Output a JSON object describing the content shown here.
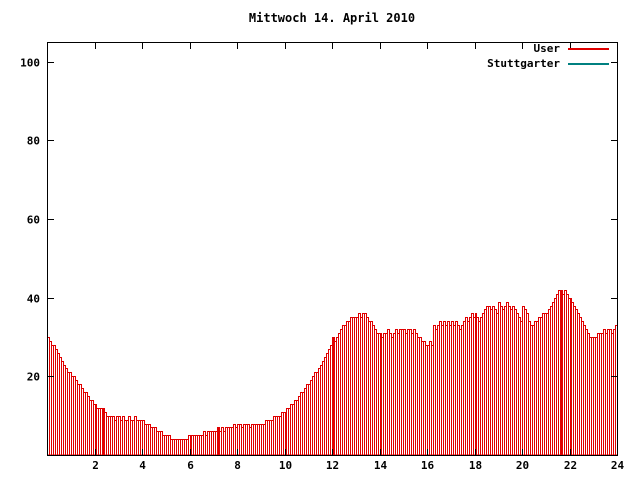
{
  "chart_data": {
    "type": "bar",
    "title": "Mittwoch 14. April 2010",
    "xlabel": "",
    "ylabel": "",
    "xlim": [
      0,
      24
    ],
    "ylim": [
      0,
      105
    ],
    "x_ticks": [
      2,
      4,
      6,
      8,
      10,
      12,
      14,
      16,
      18,
      20,
      22,
      24
    ],
    "y_ticks": [
      20,
      40,
      60,
      80,
      100
    ],
    "grid": false,
    "axis_color": "#000000",
    "background_color": "#ffffff",
    "bar_interval_minutes": 5,
    "legend": [
      {
        "label": "User",
        "color": "#e00000"
      },
      {
        "label": "Stuttgarter",
        "color": "#008080"
      }
    ],
    "series": [
      {
        "name": "User",
        "color": "#e00000",
        "solid_indices": [
          28,
          86,
          144,
          259
        ],
        "values": [
          30,
          29,
          28,
          28,
          27,
          26,
          25,
          24,
          23,
          22,
          21,
          21,
          20,
          20,
          19,
          18,
          18,
          17,
          16,
          16,
          15,
          14,
          14,
          13,
          13,
          12,
          12,
          12,
          12,
          11,
          10,
          10,
          10,
          10,
          9,
          10,
          10,
          9,
          10,
          9,
          9,
          10,
          9,
          9,
          10,
          9,
          9,
          9,
          9,
          8,
          8,
          8,
          7,
          7,
          7,
          6,
          6,
          6,
          5,
          5,
          5,
          5,
          4,
          4,
          4,
          4,
          4,
          4,
          4,
          4,
          4,
          5,
          4,
          5,
          5,
          5,
          5,
          5,
          5,
          6,
          5,
          6,
          6,
          6,
          6,
          6,
          7,
          6,
          7,
          6,
          7,
          7,
          7,
          7,
          8,
          7,
          8,
          8,
          7,
          8,
          8,
          8,
          7,
          8,
          8,
          8,
          8,
          8,
          8,
          8,
          9,
          9,
          9,
          9,
          10,
          10,
          10,
          10,
          11,
          11,
          11,
          12,
          12,
          13,
          13,
          14,
          14,
          15,
          16,
          16,
          17,
          18,
          18,
          19,
          20,
          21,
          21,
          22,
          23,
          24,
          25,
          26,
          27,
          28,
          30,
          29,
          30,
          31,
          32,
          33,
          33,
          34,
          34,
          35,
          35,
          35,
          35,
          36,
          35,
          36,
          36,
          35,
          34,
          34,
          33,
          32,
          31,
          31,
          31,
          30,
          31,
          31,
          32,
          31,
          30,
          31,
          32,
          31,
          32,
          32,
          32,
          31,
          32,
          32,
          31,
          32,
          31,
          30,
          30,
          29,
          29,
          28,
          28,
          29,
          28,
          33,
          32,
          33,
          34,
          33,
          34,
          33,
          34,
          33,
          34,
          33,
          34,
          33,
          32,
          33,
          34,
          35,
          34,
          35,
          36,
          35,
          36,
          35,
          34,
          35,
          36,
          37,
          38,
          38,
          37,
          38,
          37,
          36,
          39,
          38,
          37,
          38,
          39,
          38,
          37,
          38,
          37,
          36,
          35,
          34,
          38,
          37,
          36,
          34,
          33,
          33,
          34,
          34,
          35,
          35,
          36,
          36,
          36,
          37,
          38,
          39,
          40,
          41,
          42,
          42,
          41,
          42,
          41,
          40,
          40,
          39,
          38,
          37,
          36,
          35,
          34,
          33,
          32,
          31,
          30,
          30,
          30,
          30,
          31,
          31,
          31,
          32,
          31,
          32,
          32,
          31,
          32,
          33
        ]
      },
      {
        "name": "Stuttgarter",
        "color": "#008080",
        "values": []
      }
    ]
  }
}
